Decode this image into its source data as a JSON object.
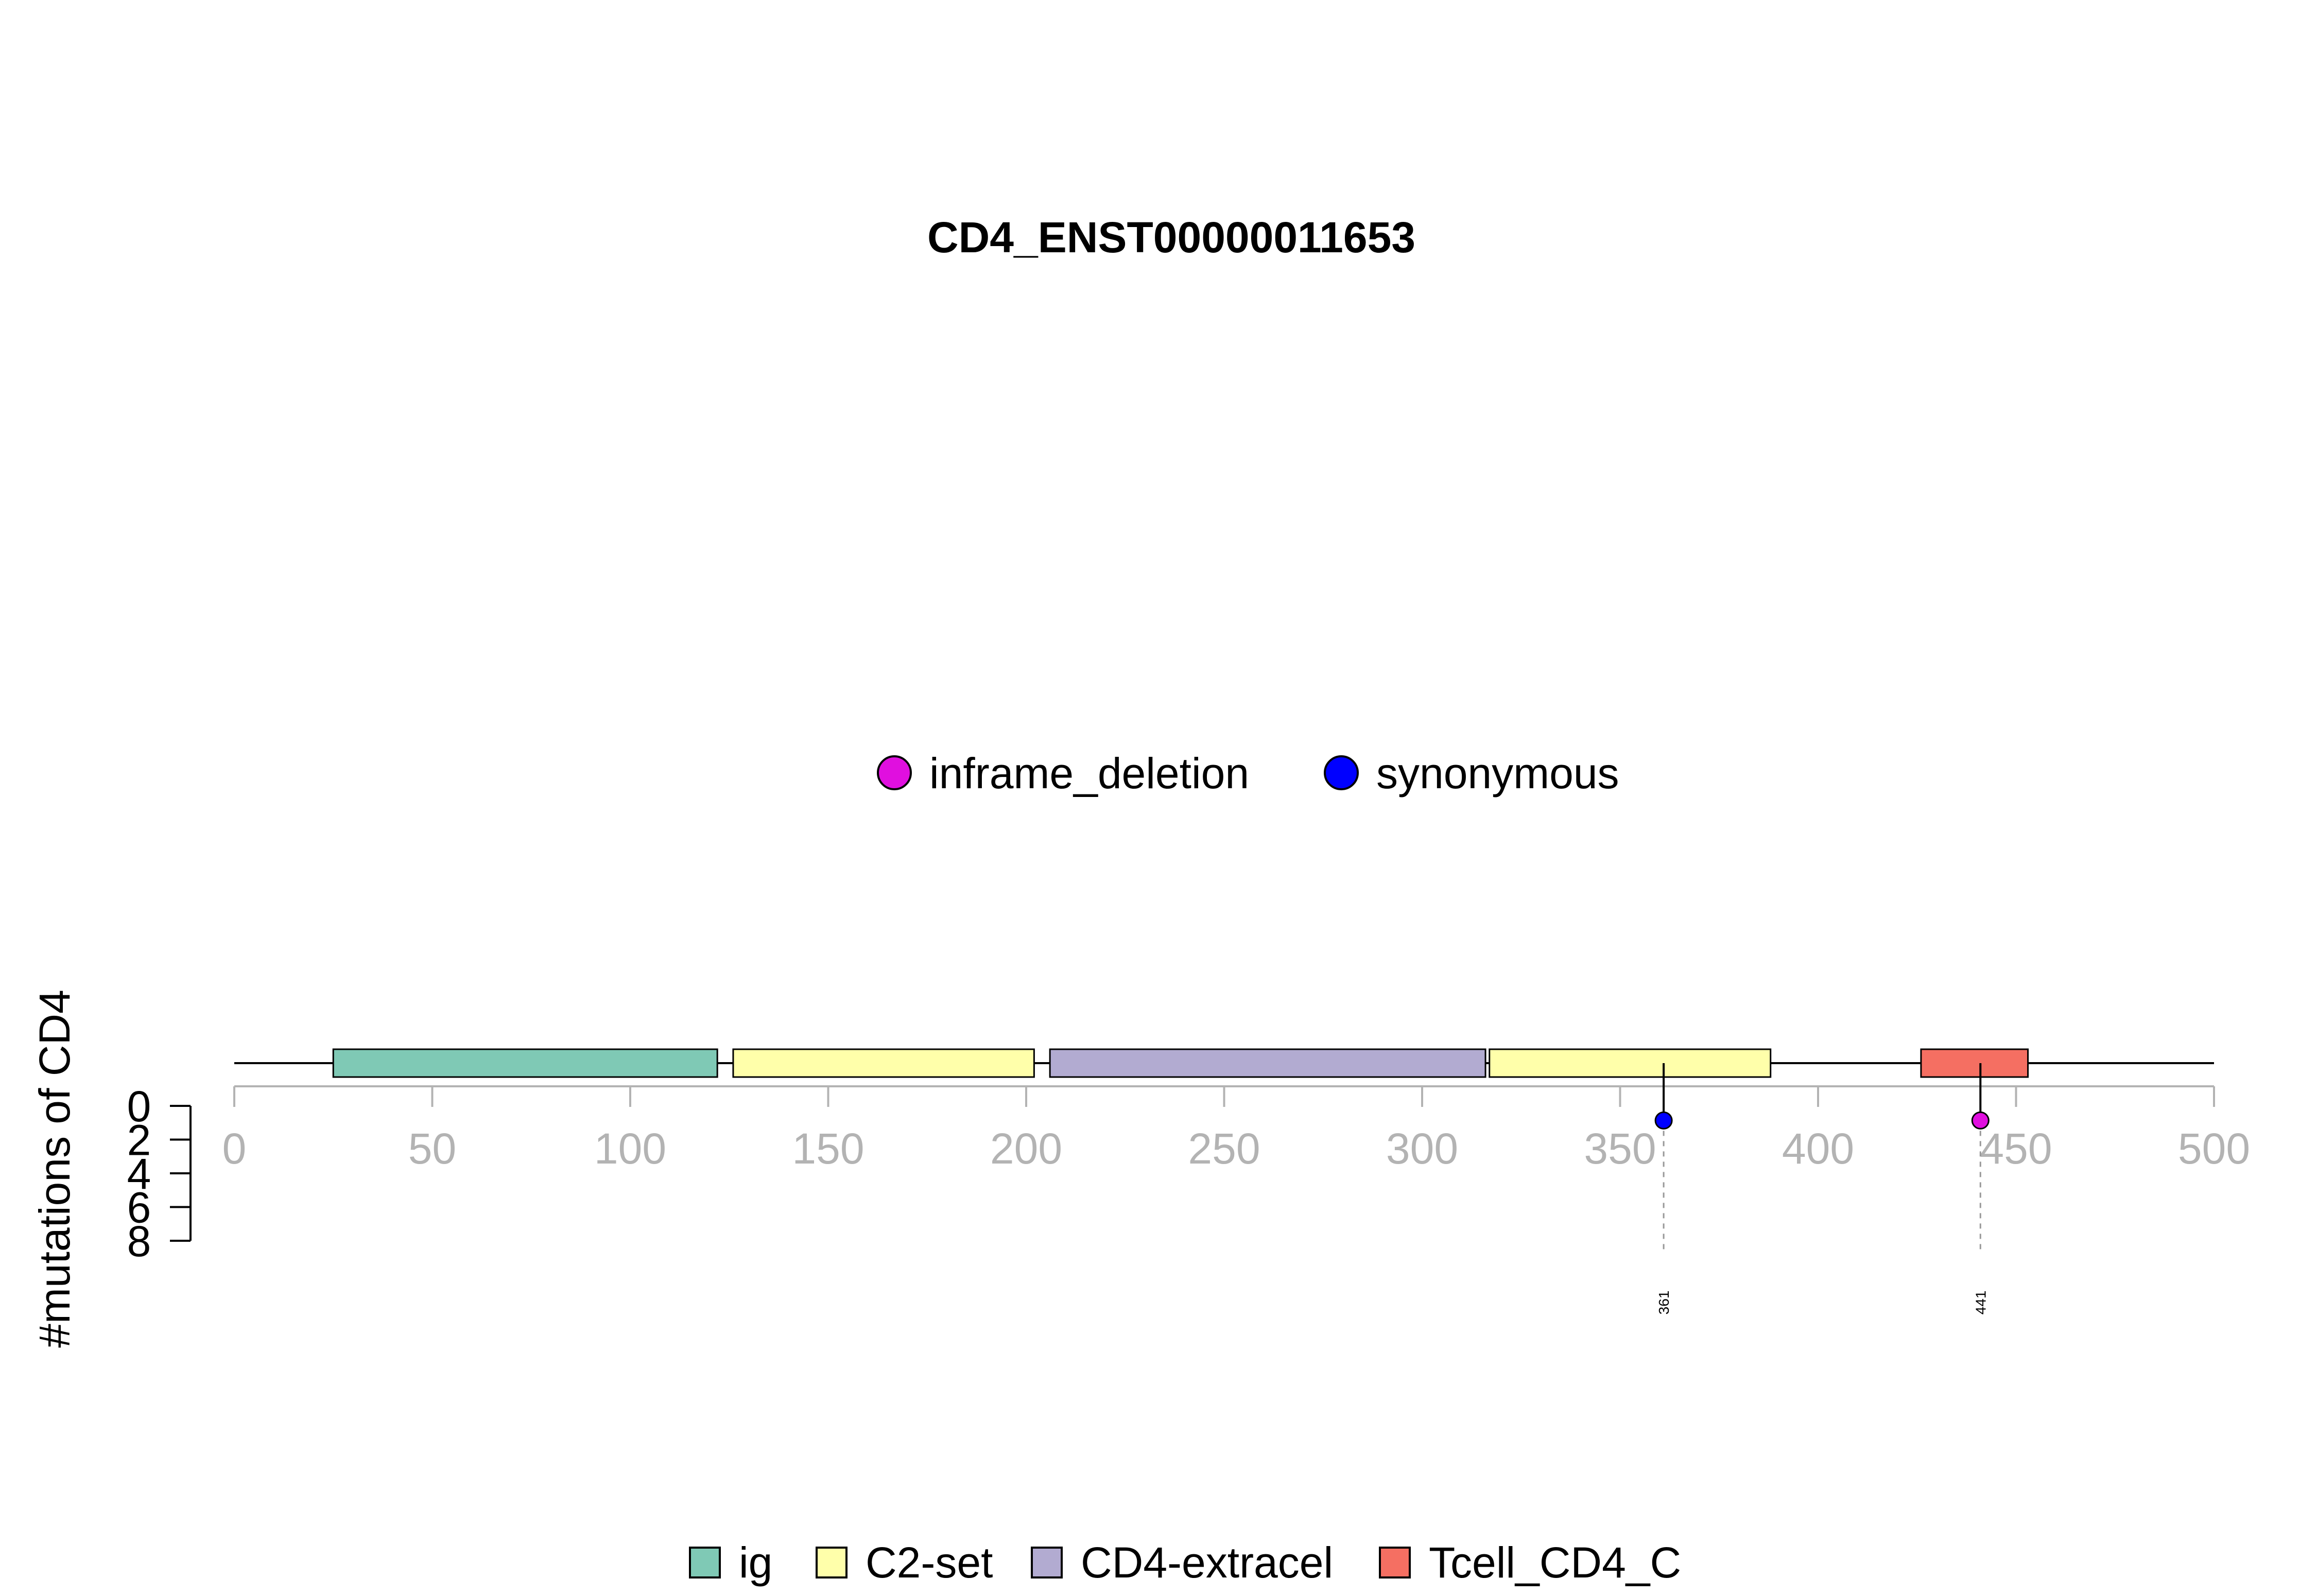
{
  "chart_data": {
    "type": "lollipop",
    "title": "CD4_ENST00000011653",
    "ylabel": "#mutations of CD4",
    "xlim": [
      0,
      500
    ],
    "ylim": [
      0,
      8
    ],
    "x_ticks": [
      0,
      50,
      100,
      150,
      200,
      250,
      300,
      350,
      400,
      450,
      500
    ],
    "y_ticks": [
      0,
      2,
      4,
      6,
      8
    ],
    "protein_length": 500,
    "mutation_legend": [
      {
        "label": "inframe_deletion",
        "color": "#E00FDF"
      },
      {
        "label": "synonymous",
        "color": "#0000FF"
      }
    ],
    "domains": [
      {
        "name": "ig",
        "start": 25,
        "end": 122,
        "color": "#7FC9B5"
      },
      {
        "name": "C2-set",
        "start": 126,
        "end": 202,
        "color": "#FFFFAA"
      },
      {
        "name": "CD4-extracel",
        "start": 206,
        "end": 316,
        "color": "#B2ABD1"
      },
      {
        "name": "C2-set",
        "start": 317,
        "end": 388,
        "color": "#FFFFAA"
      },
      {
        "name": "Tcell_CD4_C",
        "start": 426,
        "end": 453,
        "color": "#F56F62"
      }
    ],
    "domain_legend": [
      {
        "label": "ig",
        "color": "#7FC9B5"
      },
      {
        "label": "C2-set",
        "color": "#FFFFAA"
      },
      {
        "label": "CD4-extracel",
        "color": "#B2ABD1"
      },
      {
        "label": "Tcell_CD4_C",
        "color": "#F56F62"
      }
    ],
    "mutations": [
      {
        "position": 361,
        "label": "361",
        "count": 1,
        "type": "synonymous",
        "color": "#0000FF"
      },
      {
        "position": 441,
        "label": "441",
        "count": 1,
        "type": "inframe_deletion",
        "color": "#E00FDF"
      }
    ]
  }
}
